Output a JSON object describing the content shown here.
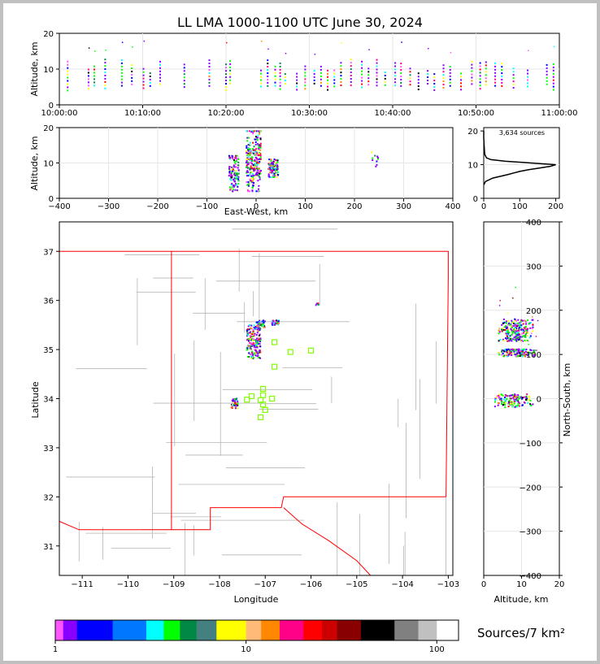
{
  "title": "LL LMA 1000-1100 UTC June 30, 2024",
  "colorbar_label": "Sources/7 km²",
  "chart_data": [
    {
      "type": "scatter",
      "panel": "altitude-time",
      "ylabel": "Altitude, km",
      "ylim": [
        0,
        20
      ],
      "yticks": [
        "0",
        "10",
        "20"
      ],
      "xticks": [
        "10:00:00",
        "10:10:00",
        "10:20:00",
        "10:30:00",
        "10:40:00",
        "10:50:00",
        "11:00:00"
      ],
      "xlim_minutes": [
        0,
        60
      ],
      "grid": true,
      "activity_columns_minutes": [
        1.0,
        3.5,
        4.2,
        5.5,
        7.5,
        8.7,
        10.1,
        10.9,
        12.1,
        15.0,
        18.0,
        20.0,
        20.5,
        24.2,
        25.0,
        25.9,
        26.5,
        27.1,
        28.5,
        29.5,
        30.6,
        31.4,
        32.2,
        33.0,
        33.8,
        35.0,
        36.3,
        37.1,
        38.1,
        39.1,
        40.3,
        41.0,
        42.1,
        43.1,
        44.2,
        45.0,
        46.1,
        46.9,
        48.2,
        49.5,
        50.5,
        51.2,
        52.3,
        53.1,
        54.5,
        56.2,
        58.5,
        59.3
      ]
    },
    {
      "type": "scatter",
      "panel": "altitude-eastwest",
      "xlabel": "East-West, km",
      "ylabel": "Altitude, km",
      "xlim": [
        -400,
        400
      ],
      "ylim": [
        0,
        20
      ],
      "xticks": [
        "−400",
        "−300",
        "−200",
        "−100",
        "0",
        "100",
        "200",
        "300",
        "400"
      ],
      "yticks": [
        "0",
        "10",
        "20"
      ],
      "clusters": [
        {
          "x": [
            -55,
            -35
          ],
          "z": [
            2,
            12
          ]
        },
        {
          "x": [
            -20,
            10
          ],
          "z": [
            2,
            19
          ]
        },
        {
          "x": [
            25,
            45
          ],
          "z": [
            6,
            11
          ]
        },
        {
          "x": [
            235,
            250
          ],
          "z": [
            9,
            13
          ]
        }
      ]
    },
    {
      "type": "line",
      "panel": "altitude-histogram",
      "xlim": [
        0,
        210
      ],
      "ylim": [
        0,
        21
      ],
      "xticks": [
        "0",
        "100",
        "200"
      ],
      "yticks": [
        "0",
        "10",
        "20"
      ],
      "annotation": "3,634 sources",
      "profile": {
        "z": [
          4,
          5,
          6,
          7,
          8,
          8.5,
          9,
          9.5,
          10,
          10.5,
          11,
          11.5,
          12,
          13,
          14,
          16,
          18,
          20
        ],
        "count": [
          0,
          5,
          25,
          65,
          100,
          125,
          155,
          185,
          200,
          130,
          60,
          20,
          8,
          3,
          2,
          1,
          0,
          0
        ]
      }
    },
    {
      "type": "scatter",
      "panel": "plan-view-map",
      "xlabel": "Longitude",
      "ylabel": "Latitude",
      "xlim": [
        -111.5,
        -102.9
      ],
      "ylim": [
        30.4,
        37.6
      ],
      "xticks": [
        "−111",
        "−110",
        "−109",
        "−108",
        "−107",
        "−106",
        "−105",
        "−104",
        "−103"
      ],
      "yticks": [
        "31",
        "32",
        "33",
        "34",
        "35",
        "36",
        "37"
      ],
      "clusters": [
        {
          "lon": [
            -107.4,
            -107.1
          ],
          "lat": [
            34.8,
            35.5
          ]
        },
        {
          "lon": [
            -107.2,
            -107.0
          ],
          "lat": [
            35.45,
            35.6
          ]
        },
        {
          "lon": [
            -106.85,
            -106.7
          ],
          "lat": [
            35.5,
            35.6
          ]
        },
        {
          "lon": [
            -107.75,
            -107.6
          ],
          "lat": [
            33.8,
            34.0
          ]
        },
        {
          "lon": [
            -105.9,
            -105.8
          ],
          "lat": [
            35.9,
            35.95
          ]
        }
      ],
      "station_markers": [
        {
          "lon": -106.8,
          "lat": 35.15
        },
        {
          "lon": -106.45,
          "lat": 34.95
        },
        {
          "lon": -106.0,
          "lat": 34.98
        },
        {
          "lon": -106.8,
          "lat": 34.65
        },
        {
          "lon": -107.05,
          "lat": 34.2
        },
        {
          "lon": -107.3,
          "lat": 34.05
        },
        {
          "lon": -107.05,
          "lat": 34.07
        },
        {
          "lon": -107.4,
          "lat": 33.98
        },
        {
          "lon": -107.1,
          "lat": 33.97
        },
        {
          "lon": -106.85,
          "lat": 34.0
        },
        {
          "lon": -107.05,
          "lat": 33.88
        },
        {
          "lon": -107.0,
          "lat": 33.77
        },
        {
          "lon": -107.1,
          "lat": 33.62
        }
      ],
      "station_color": "#7fff00",
      "border_color": "#ff0000"
    },
    {
      "type": "scatter",
      "panel": "northsouth-altitude",
      "xlabel": "Altitude, km",
      "ylabel": "North-South, km",
      "xlim": [
        0,
        20
      ],
      "ylim": [
        -400,
        400
      ],
      "xticks": [
        "0",
        "10",
        "20"
      ],
      "yticks": [
        "400",
        "300",
        "200",
        "100",
        "0",
        "−100",
        "−200",
        "−300",
        "−400"
      ],
      "clusters": [
        {
          "z": [
            4,
            13
          ],
          "y": [
            130,
            180
          ]
        },
        {
          "z": [
            4,
            14
          ],
          "y": [
            95,
            112
          ]
        },
        {
          "z": [
            3,
            13
          ],
          "y": [
            -20,
            10
          ]
        }
      ]
    },
    {
      "type": "heatmap",
      "panel": "colorbar",
      "scale": "log",
      "ticks": [
        "1",
        "10",
        "100"
      ],
      "colors": [
        "#ff55ff",
        "#8800ff",
        "#0000ff",
        "#0077ff",
        "#00ffff",
        "#00ff00",
        "#008844",
        "#448080",
        "#ffff00",
        "#ffbb77",
        "#ff8800",
        "#ff0088",
        "#ff0000",
        "#cc0000",
        "#880000",
        "#000000",
        "#808080",
        "#c0c0c0",
        "#ffffff"
      ]
    }
  ]
}
